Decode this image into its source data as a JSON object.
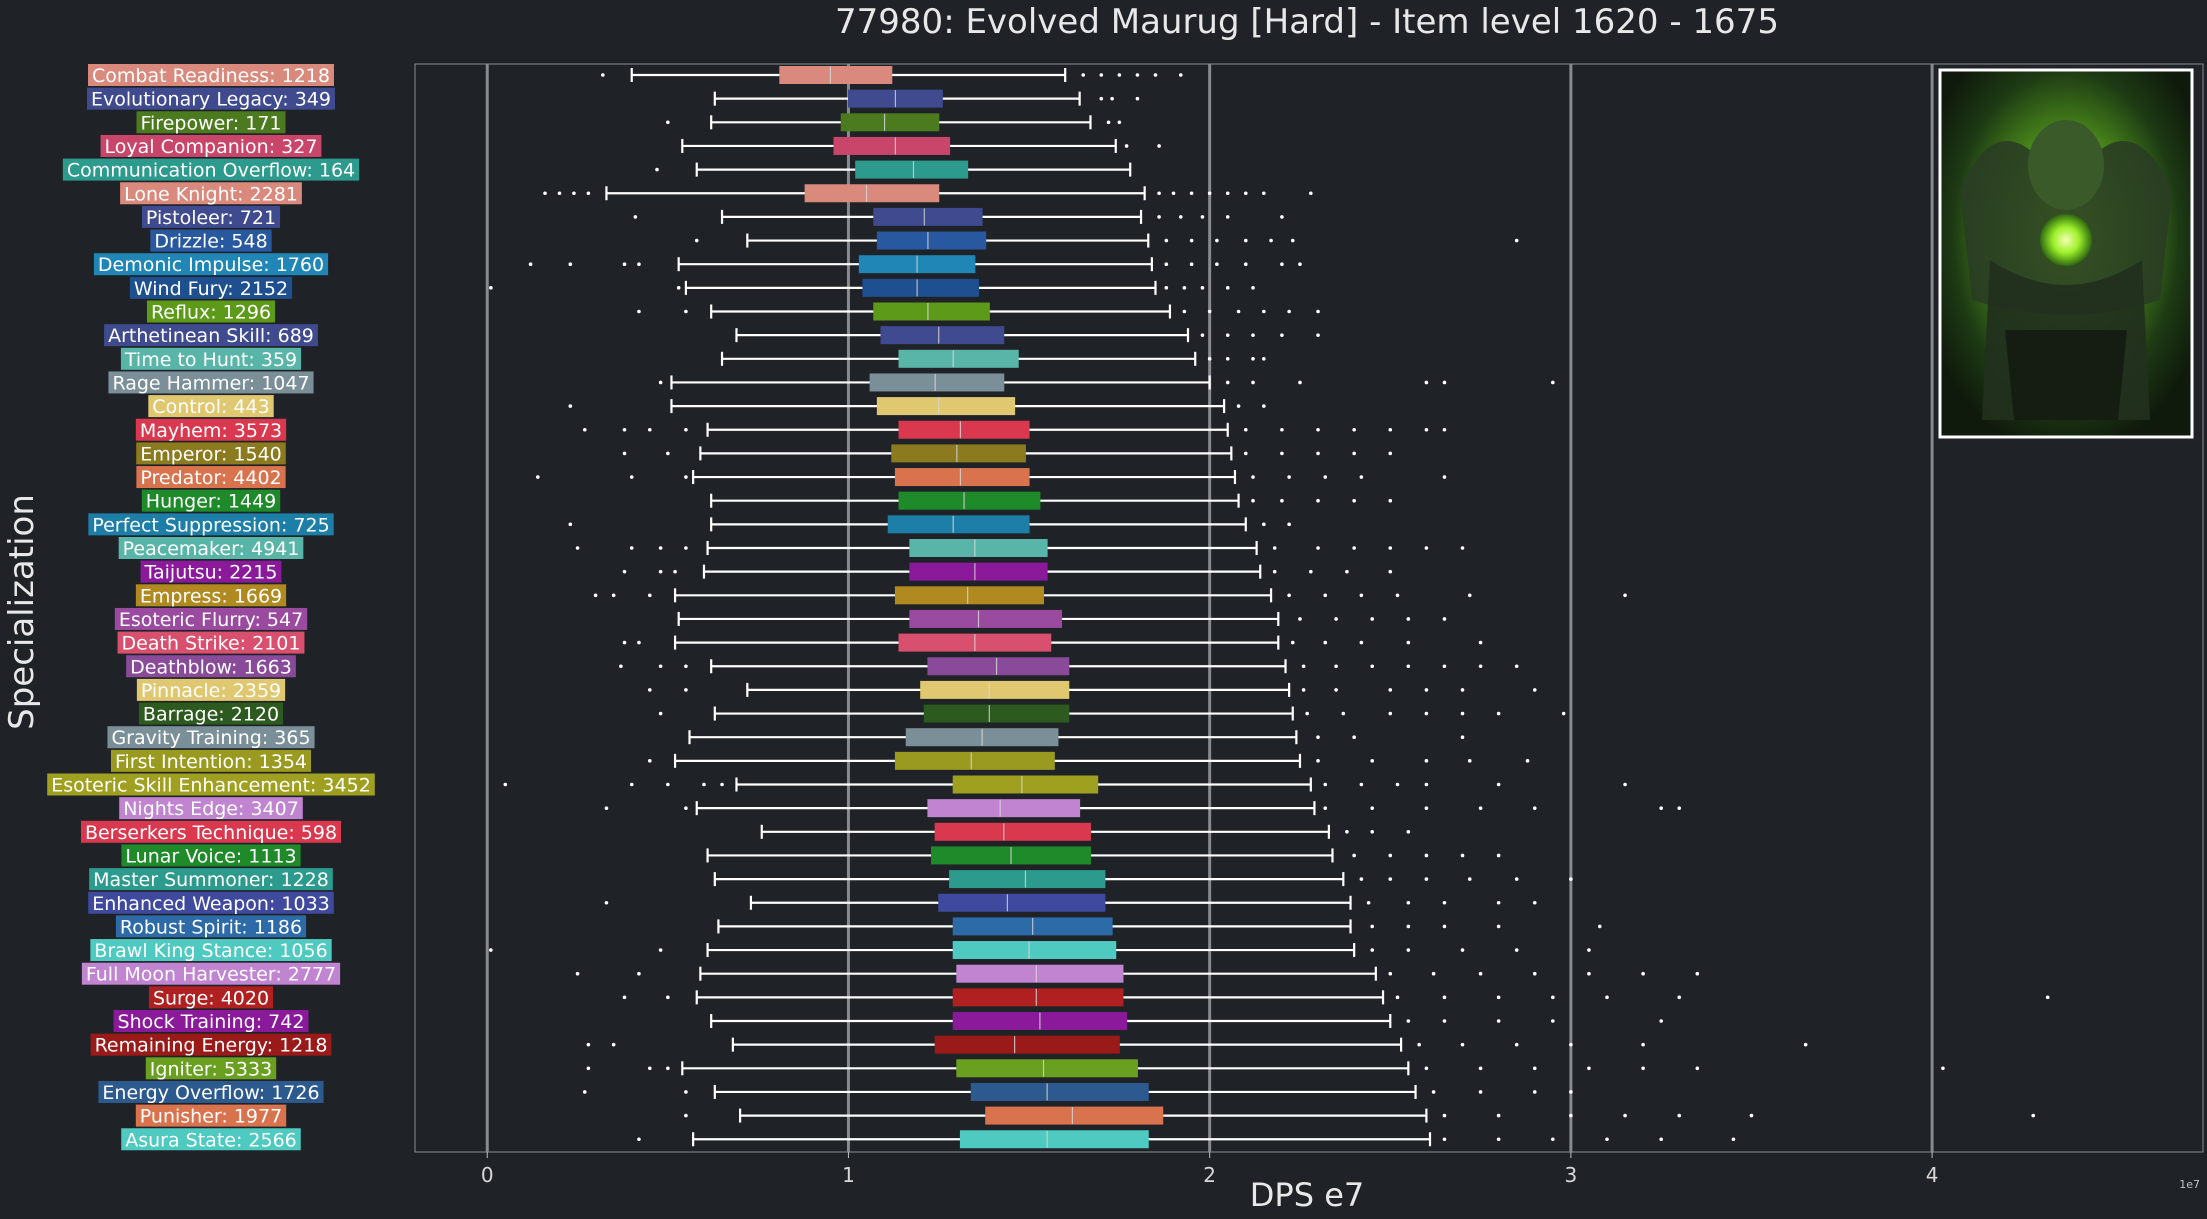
{
  "chart_data": {
    "type": "boxplot",
    "orientation": "horizontal",
    "title": "77980: Evolved Maurug [Hard] - Item level 1620 - 1675",
    "xlabel": "DPS e7",
    "ylabel": "Specialization",
    "x_ticks": [
      "0",
      "1",
      "2",
      "3",
      "4"
    ],
    "x_tick_values": [
      0,
      1,
      2,
      3,
      4
    ],
    "x_offset_label": "1e7",
    "xlim": [
      -0.2,
      4.75
    ],
    "grid": "vertical",
    "background": "#1f2227",
    "categories": [
      {
        "label": "Combat Readiness: 1218",
        "color": "#d98a7d",
        "min": 0.4,
        "q1": 0.81,
        "median": 0.95,
        "q3": 1.12,
        "max": 1.6,
        "outliers": [
          0.32,
          1.65,
          1.7,
          1.75,
          1.8,
          1.85,
          1.92
        ]
      },
      {
        "label": "Evolutionary Legacy: 349",
        "color": "#3f4a8f",
        "min": 0.63,
        "q1": 1.0,
        "median": 1.13,
        "q3": 1.26,
        "max": 1.64,
        "outliers": [
          1.7,
          1.73,
          1.8
        ]
      },
      {
        "label": "Firepower: 171",
        "color": "#4c7a1f",
        "min": 0.62,
        "q1": 0.98,
        "median": 1.1,
        "q3": 1.25,
        "max": 1.67,
        "outliers": [
          0.5,
          1.72,
          1.75
        ]
      },
      {
        "label": "Loyal Companion: 327",
        "color": "#c9456a",
        "min": 0.54,
        "q1": 0.96,
        "median": 1.13,
        "q3": 1.28,
        "max": 1.74,
        "outliers": [
          1.77,
          1.86
        ]
      },
      {
        "label": "Communication Overflow: 164",
        "color": "#2c9a8c",
        "min": 0.58,
        "q1": 1.02,
        "median": 1.18,
        "q3": 1.33,
        "max": 1.78,
        "outliers": [
          0.47
        ]
      },
      {
        "label": "Lone Knight: 2281",
        "color": "#d98a7d",
        "min": 0.33,
        "q1": 0.88,
        "median": 1.05,
        "q3": 1.25,
        "max": 1.82,
        "outliers": [
          0.16,
          0.2,
          0.24,
          0.28,
          1.86,
          1.9,
          1.95,
          2.0,
          2.05,
          2.1,
          2.15,
          2.28
        ]
      },
      {
        "label": "Pistoleer: 721",
        "color": "#3f4a8f",
        "min": 0.65,
        "q1": 1.07,
        "median": 1.21,
        "q3": 1.37,
        "max": 1.81,
        "outliers": [
          0.41,
          1.86,
          1.92,
          1.98,
          2.05,
          2.2
        ]
      },
      {
        "label": "Drizzle: 548",
        "color": "#2858a0",
        "min": 0.72,
        "q1": 1.08,
        "median": 1.22,
        "q3": 1.38,
        "max": 1.83,
        "outliers": [
          0.58,
          1.88,
          1.95,
          2.02,
          2.1,
          2.17,
          2.23,
          2.85
        ]
      },
      {
        "label": "Demonic Impulse: 1760",
        "color": "#1f86b5",
        "min": 0.53,
        "q1": 1.03,
        "median": 1.19,
        "q3": 1.35,
        "max": 1.84,
        "outliers": [
          0.12,
          0.23,
          0.38,
          0.42,
          1.88,
          1.95,
          2.02,
          2.1,
          2.2,
          2.25
        ]
      },
      {
        "label": "Wind Fury: 2152",
        "color": "#1e4f8f",
        "min": 0.55,
        "q1": 1.04,
        "median": 1.19,
        "q3": 1.36,
        "max": 1.85,
        "outliers": [
          0.01,
          0.53,
          1.88,
          1.93,
          1.98,
          2.05,
          2.12
        ]
      },
      {
        "label": "Reflux: 1296",
        "color": "#5e9a1a",
        "min": 0.62,
        "q1": 1.07,
        "median": 1.22,
        "q3": 1.39,
        "max": 1.89,
        "outliers": [
          0.42,
          0.55,
          1.93,
          2.0,
          2.08,
          2.15,
          2.22,
          2.3
        ]
      },
      {
        "label": "Arthetinean Skill: 689",
        "color": "#3f4a8f",
        "min": 0.69,
        "q1": 1.09,
        "median": 1.25,
        "q3": 1.43,
        "max": 1.94,
        "outliers": [
          1.98,
          2.05,
          2.12,
          2.2,
          2.3
        ]
      },
      {
        "label": "Time to Hunt: 359",
        "color": "#59b5a8",
        "min": 0.65,
        "q1": 1.14,
        "median": 1.29,
        "q3": 1.47,
        "max": 1.96,
        "outliers": [
          2.0,
          2.05,
          2.12,
          2.15
        ]
      },
      {
        "label": "Rage Hammer: 1047",
        "color": "#7a8f98",
        "min": 0.51,
        "q1": 1.06,
        "median": 1.24,
        "q3": 1.43,
        "max": 2.0,
        "outliers": [
          0.48,
          2.05,
          2.12,
          2.25,
          2.6,
          2.65,
          2.95
        ]
      },
      {
        "label": "Control: 443",
        "color": "#e0c870",
        "min": 0.51,
        "q1": 1.08,
        "median": 1.25,
        "q3": 1.46,
        "max": 2.04,
        "outliers": [
          0.23,
          2.08,
          2.15
        ]
      },
      {
        "label": "Mayhem: 3573",
        "color": "#d9384e",
        "min": 0.61,
        "q1": 1.14,
        "median": 1.31,
        "q3": 1.5,
        "max": 2.05,
        "outliers": [
          0.27,
          0.38,
          0.45,
          0.55,
          2.1,
          2.2,
          2.3,
          2.4,
          2.5,
          2.6,
          2.65
        ]
      },
      {
        "label": "Emperor: 1540",
        "color": "#8c7a1f",
        "min": 0.59,
        "q1": 1.12,
        "median": 1.3,
        "q3": 1.49,
        "max": 2.06,
        "outliers": [
          0.38,
          0.5,
          2.1,
          2.2,
          2.3,
          2.4,
          2.5
        ]
      },
      {
        "label": "Predator: 4402",
        "color": "#d9734e",
        "min": 0.57,
        "q1": 1.13,
        "median": 1.31,
        "q3": 1.5,
        "max": 2.07,
        "outliers": [
          0.14,
          0.4,
          0.55,
          2.12,
          2.22,
          2.32,
          2.42,
          2.65
        ]
      },
      {
        "label": "Hunger: 1449",
        "color": "#1f8a2a",
        "min": 0.62,
        "q1": 1.14,
        "median": 1.32,
        "q3": 1.53,
        "max": 2.08,
        "outliers": [
          2.12,
          2.2,
          2.3,
          2.4,
          2.5
        ]
      },
      {
        "label": "Perfect Suppression: 725",
        "color": "#1d7fa8",
        "min": 0.62,
        "q1": 1.11,
        "median": 1.29,
        "q3": 1.5,
        "max": 2.1,
        "outliers": [
          0.23,
          2.15,
          2.22
        ]
      },
      {
        "label": "Peacemaker: 4941",
        "color": "#59b5a8",
        "min": 0.61,
        "q1": 1.17,
        "median": 1.35,
        "q3": 1.55,
        "max": 2.13,
        "outliers": [
          0.25,
          0.4,
          0.48,
          0.55,
          2.18,
          2.3,
          2.4,
          2.5,
          2.6,
          2.7
        ]
      },
      {
        "label": "Taijutsu: 2215",
        "color": "#8a1a9a",
        "min": 0.6,
        "q1": 1.17,
        "median": 1.35,
        "q3": 1.55,
        "max": 2.14,
        "outliers": [
          0.38,
          0.48,
          0.52,
          2.18,
          2.28,
          2.38,
          2.5
        ]
      },
      {
        "label": "Empress: 1669",
        "color": "#b08a20",
        "min": 0.52,
        "q1": 1.13,
        "median": 1.33,
        "q3": 1.54,
        "max": 2.17,
        "outliers": [
          0.3,
          0.35,
          0.45,
          2.22,
          2.32,
          2.42,
          2.52,
          2.72,
          3.15
        ]
      },
      {
        "label": "Esoteric Flurry: 547",
        "color": "#9a4a9f",
        "min": 0.53,
        "q1": 1.17,
        "median": 1.36,
        "q3": 1.59,
        "max": 2.19,
        "outliers": [
          2.25,
          2.35,
          2.45,
          2.55,
          2.65
        ]
      },
      {
        "label": "Death Strike: 2101",
        "color": "#d9506e",
        "min": 0.52,
        "q1": 1.14,
        "median": 1.35,
        "q3": 1.56,
        "max": 2.19,
        "outliers": [
          0.38,
          0.42,
          2.23,
          2.32,
          2.42,
          2.55,
          2.75
        ]
      },
      {
        "label": "Deathblow: 1663",
        "color": "#8a4a9a",
        "min": 0.62,
        "q1": 1.22,
        "median": 1.41,
        "q3": 1.61,
        "max": 2.21,
        "outliers": [
          0.37,
          0.48,
          0.55,
          2.26,
          2.35,
          2.45,
          2.55,
          2.65,
          2.75,
          2.85
        ]
      },
      {
        "label": "Pinnacle: 2359",
        "color": "#e0c870",
        "min": 0.72,
        "q1": 1.2,
        "median": 1.39,
        "q3": 1.61,
        "max": 2.22,
        "outliers": [
          0.45,
          0.55,
          2.26,
          2.35,
          2.5,
          2.6,
          2.7,
          2.9
        ]
      },
      {
        "label": "Barrage: 2120",
        "color": "#2c5a1f",
        "min": 0.63,
        "q1": 1.21,
        "median": 1.39,
        "q3": 1.61,
        "max": 2.23,
        "outliers": [
          0.48,
          2.27,
          2.37,
          2.5,
          2.6,
          2.7,
          2.8,
          2.98
        ]
      },
      {
        "label": "Gravity Training: 365",
        "color": "#7a8f98",
        "min": 0.56,
        "q1": 1.16,
        "median": 1.37,
        "q3": 1.58,
        "max": 2.24,
        "outliers": [
          2.3,
          2.4,
          2.7
        ]
      },
      {
        "label": "First Intention: 1354",
        "color": "#9a9a20",
        "min": 0.52,
        "q1": 1.13,
        "median": 1.34,
        "q3": 1.57,
        "max": 2.25,
        "outliers": [
          0.45,
          2.3,
          2.45,
          2.6,
          2.72,
          2.88
        ]
      },
      {
        "label": "Esoteric Skill Enhancement: 3452",
        "color": "#a0a020",
        "min": 0.69,
        "q1": 1.29,
        "median": 1.48,
        "q3": 1.69,
        "max": 2.28,
        "outliers": [
          0.05,
          0.4,
          0.5,
          0.6,
          0.65,
          2.32,
          2.42,
          2.52,
          2.6,
          2.8,
          3.15
        ]
      },
      {
        "label": "Nights Edge: 3407",
        "color": "#c084d0",
        "min": 0.58,
        "q1": 1.22,
        "median": 1.42,
        "q3": 1.64,
        "max": 2.29,
        "outliers": [
          0.33,
          0.55,
          2.32,
          2.45,
          2.6,
          2.75,
          2.9,
          3.25,
          3.3
        ]
      },
      {
        "label": "Berserkers Technique: 598",
        "color": "#d9384e",
        "min": 0.76,
        "q1": 1.24,
        "median": 1.43,
        "q3": 1.67,
        "max": 2.33,
        "outliers": [
          2.38,
          2.45,
          2.55
        ]
      },
      {
        "label": "Lunar Voice: 1113",
        "color": "#1f8a2a",
        "min": 0.61,
        "q1": 1.23,
        "median": 1.45,
        "q3": 1.67,
        "max": 2.34,
        "outliers": [
          2.4,
          2.5,
          2.6,
          2.7,
          2.8
        ]
      },
      {
        "label": "Master Summoner: 1228",
        "color": "#2c9a8c",
        "min": 0.63,
        "q1": 1.28,
        "median": 1.49,
        "q3": 1.71,
        "max": 2.37,
        "outliers": [
          2.42,
          2.5,
          2.6,
          2.72,
          2.85,
          3.0
        ]
      },
      {
        "label": "Enhanced Weapon: 1033",
        "color": "#3f4a9f",
        "min": 0.73,
        "q1": 1.25,
        "median": 1.44,
        "q3": 1.71,
        "max": 2.39,
        "outliers": [
          0.33,
          2.44,
          2.55,
          2.65,
          2.8,
          2.9
        ]
      },
      {
        "label": "Robust Spirit: 1186",
        "color": "#2c6aa8",
        "min": 0.64,
        "q1": 1.29,
        "median": 1.51,
        "q3": 1.73,
        "max": 2.39,
        "outliers": [
          2.45,
          2.55,
          2.65,
          2.8,
          3.08
        ]
      },
      {
        "label": "Brawl King Stance: 1056",
        "color": "#4ecac0",
        "min": 0.61,
        "q1": 1.29,
        "median": 1.5,
        "q3": 1.74,
        "max": 2.4,
        "outliers": [
          0.01,
          0.48,
          2.45,
          2.55,
          2.7,
          2.85,
          3.05
        ]
      },
      {
        "label": "Full Moon Harvester: 2777",
        "color": "#c084d0",
        "min": 0.59,
        "q1": 1.3,
        "median": 1.52,
        "q3": 1.76,
        "max": 2.46,
        "outliers": [
          0.25,
          0.42,
          2.5,
          2.62,
          2.75,
          2.9,
          3.05,
          3.2,
          3.35
        ]
      },
      {
        "label": "Surge: 4020",
        "color": "#b02020",
        "min": 0.58,
        "q1": 1.29,
        "median": 1.52,
        "q3": 1.76,
        "max": 2.48,
        "outliers": [
          0.38,
          0.5,
          2.52,
          2.65,
          2.8,
          2.95,
          3.1,
          3.3,
          4.32
        ]
      },
      {
        "label": "Shock Training: 742",
        "color": "#8a1a9a",
        "min": 0.62,
        "q1": 1.29,
        "median": 1.53,
        "q3": 1.77,
        "max": 2.5,
        "outliers": [
          2.55,
          2.65,
          2.8,
          2.95,
          3.25
        ]
      },
      {
        "label": "Remaining Energy: 1218",
        "color": "#9a1a1a",
        "min": 0.68,
        "q1": 1.24,
        "median": 1.46,
        "q3": 1.75,
        "max": 2.53,
        "outliers": [
          0.28,
          0.35,
          2.58,
          2.7,
          2.85,
          3.0,
          3.2,
          3.65
        ]
      },
      {
        "label": "Igniter: 5333",
        "color": "#6aa020",
        "min": 0.54,
        "q1": 1.3,
        "median": 1.54,
        "q3": 1.8,
        "max": 2.55,
        "outliers": [
          0.28,
          0.45,
          0.5,
          2.6,
          2.75,
          2.9,
          3.05,
          3.2,
          3.35,
          4.03
        ]
      },
      {
        "label": "Energy Overflow: 1726",
        "color": "#2c5a8f",
        "min": 0.63,
        "q1": 1.34,
        "median": 1.55,
        "q3": 1.83,
        "max": 2.57,
        "outliers": [
          0.27,
          0.55,
          2.62,
          2.75,
          2.9,
          3.0
        ]
      },
      {
        "label": "Punisher: 1977",
        "color": "#d9734e",
        "min": 0.7,
        "q1": 1.38,
        "median": 1.62,
        "q3": 1.87,
        "max": 2.6,
        "outliers": [
          0.55,
          2.65,
          2.8,
          3.0,
          3.15,
          3.3,
          3.5,
          4.28
        ]
      },
      {
        "label": "Asura State: 2566",
        "color": "#4ecac0",
        "min": 0.57,
        "q1": 1.31,
        "median": 1.55,
        "q3": 1.83,
        "max": 2.61,
        "outliers": [
          0.42,
          2.65,
          2.8,
          2.95,
          3.1,
          3.25,
          3.45
        ]
      }
    ]
  }
}
